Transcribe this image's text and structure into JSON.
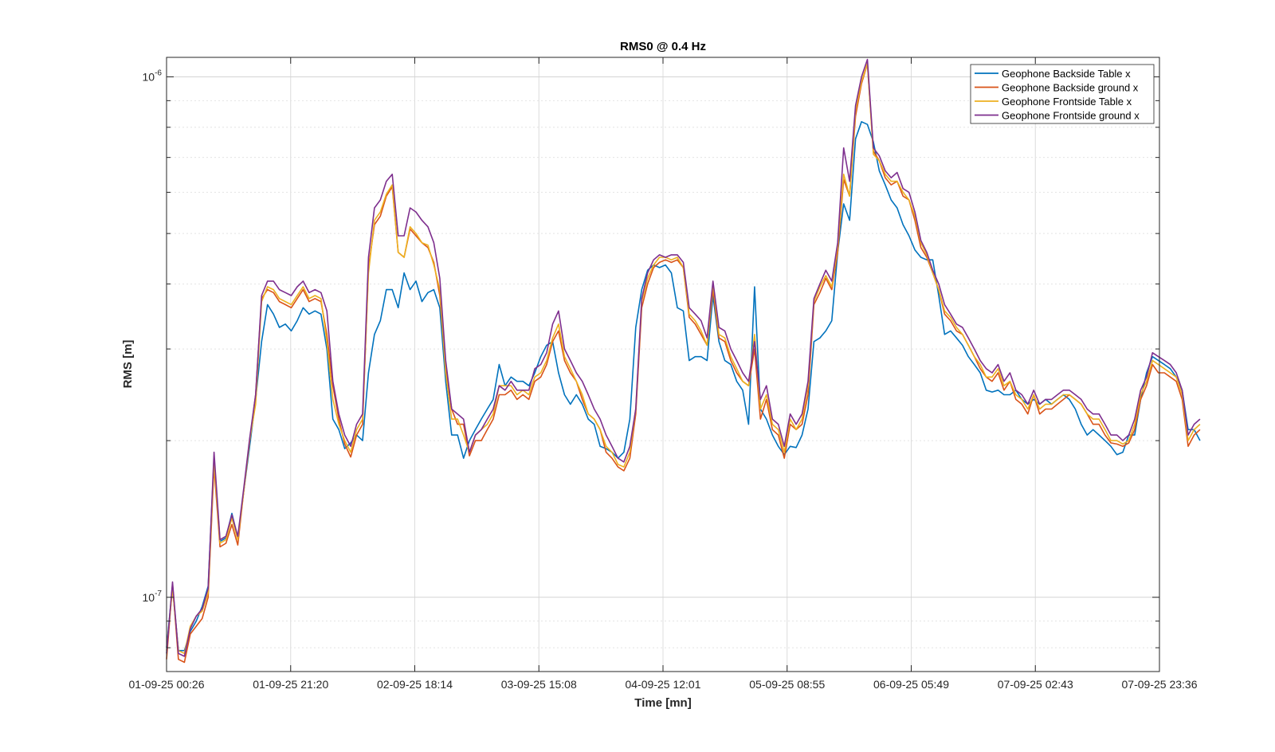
{
  "chart_data": {
    "type": "line",
    "title": "RMS0 @ 0.4 Hz",
    "xlabel": "Time [mn]",
    "ylabel": "RMS [m]",
    "yscale": "log",
    "ylim": [
      7.2e-08,
      1.09e-06
    ],
    "grid": true,
    "legend_position": "top-right",
    "x_tick_labels": [
      "01-09-25 00:26",
      "01-09-25 21:20",
      "02-09-25 18:14",
      "03-09-25 15:08",
      "04-09-25 12:01",
      "05-09-25 08:55",
      "06-09-25 05:49",
      "07-09-25 02:43",
      "07-09-25 23:36"
    ],
    "y_ticks": [
      {
        "value": 1e-07,
        "base": "10",
        "exp": "-7"
      },
      {
        "value": 1e-06,
        "base": "10",
        "exp": "-6"
      }
    ],
    "x_step_hours": 1,
    "x_start": "01-09-25 00:26",
    "series": [
      {
        "name": "Geophone Backside Table x",
        "color": "#0072BD",
        "values": [
          8e-08,
          1.05e-07,
          7.9e-08,
          7.9e-08,
          8.6e-08,
          9e-08,
          9.6e-08,
          1.05e-07,
          1.85e-07,
          1.28e-07,
          1.3e-07,
          1.45e-07,
          1.3e-07,
          1.6e-07,
          1.95e-07,
          2.4e-07,
          3.1e-07,
          3.65e-07,
          3.5e-07,
          3.3e-07,
          3.35e-07,
          3.25e-07,
          3.4e-07,
          3.6e-07,
          3.5e-07,
          3.55e-07,
          3.5e-07,
          3e-07,
          2.2e-07,
          2.1e-07,
          1.93e-07,
          1.98e-07,
          2.05e-07,
          2e-07,
          2.7e-07,
          3.2e-07,
          3.4e-07,
          3.9e-07,
          3.9e-07,
          3.6e-07,
          4.2e-07,
          3.9e-07,
          4.05e-07,
          3.7e-07,
          3.85e-07,
          3.9e-07,
          3.6e-07,
          2.6e-07,
          2.05e-07,
          2.05e-07,
          1.85e-07,
          2e-07,
          2.1e-07,
          2.2e-07,
          2.3e-07,
          2.4e-07,
          2.8e-07,
          2.55e-07,
          2.65e-07,
          2.6e-07,
          2.6e-07,
          2.55e-07,
          2.7e-07,
          2.9e-07,
          3.05e-07,
          3.1e-07,
          2.7e-07,
          2.45e-07,
          2.35e-07,
          2.45e-07,
          2.35e-07,
          2.2e-07,
          2.15e-07,
          1.95e-07,
          1.93e-07,
          1.9e-07,
          1.85e-07,
          1.9e-07,
          2.2e-07,
          3.3e-07,
          3.9e-07,
          4.25e-07,
          4.35e-07,
          4.3e-07,
          4.35e-07,
          4.2e-07,
          3.6e-07,
          3.55e-07,
          2.85e-07,
          2.9e-07,
          2.9e-07,
          2.85e-07,
          3.8e-07,
          3.1e-07,
          2.85e-07,
          2.8e-07,
          2.6e-07,
          2.5e-07,
          2.15e-07,
          3.95e-07,
          2.3e-07,
          2.2e-07,
          2.05e-07,
          1.95e-07,
          1.88e-07,
          1.95e-07,
          1.94e-07,
          2.05e-07,
          2.3e-07,
          3.1e-07,
          3.15e-07,
          3.25e-07,
          3.4e-07,
          4.6e-07,
          5.7e-07,
          5.3e-07,
          7.6e-07,
          8.2e-07,
          8.1e-07,
          7.5e-07,
          6.6e-07,
          6.2e-07,
          5.8e-07,
          5.6e-07,
          5.2e-07,
          4.95e-07,
          4.65e-07,
          4.5e-07,
          4.45e-07,
          4.45e-07,
          3.8e-07,
          3.2e-07,
          3.25e-07,
          3.15e-07,
          3.05e-07,
          2.9e-07,
          2.8e-07,
          2.7e-07,
          2.5e-07,
          2.48e-07,
          2.5e-07,
          2.45e-07,
          2.45e-07,
          2.5e-07,
          2.4e-07,
          2.35e-07,
          2.4e-07,
          2.35e-07,
          2.4e-07,
          2.35e-07,
          2.4e-07,
          2.45e-07,
          2.4e-07,
          2.3e-07,
          2.15e-07,
          2.05e-07,
          2.1e-07,
          2.05e-07,
          2e-07,
          1.95e-07,
          1.88e-07,
          1.9e-07,
          2.05e-07,
          2.05e-07,
          2.4e-07,
          2.7e-07,
          2.9e-07,
          2.85e-07,
          2.8e-07,
          2.75e-07,
          2.65e-07,
          2.5e-07,
          2.1e-07,
          2.1e-07,
          2e-07
        ]
      },
      {
        "name": "Geophone Backside ground x",
        "color": "#D95319",
        "values": [
          7.6e-08,
          1.06e-07,
          7.6e-08,
          7.5e-08,
          8.5e-08,
          8.8e-08,
          9.1e-08,
          1e-07,
          1.78e-07,
          1.25e-07,
          1.27e-07,
          1.38e-07,
          1.26e-07,
          1.6e-07,
          2e-07,
          2.45e-07,
          3.75e-07,
          3.9e-07,
          3.85e-07,
          3.7e-07,
          3.65e-07,
          3.6e-07,
          3.75e-07,
          3.9e-07,
          3.7e-07,
          3.75e-07,
          3.7e-07,
          3.2e-07,
          2.55e-07,
          2.2e-07,
          1.97e-07,
          1.86e-07,
          2.05e-07,
          2.15e-07,
          4.3e-07,
          5.2e-07,
          5.4e-07,
          5.9e-07,
          6.15e-07,
          4.6e-07,
          4.5e-07,
          5.1e-07,
          4.95e-07,
          4.8e-07,
          4.7e-07,
          4.4e-07,
          3.8e-07,
          2.75e-07,
          2.3e-07,
          2.15e-07,
          2.15e-07,
          1.87e-07,
          2e-07,
          2e-07,
          2.1e-07,
          2.2e-07,
          2.45e-07,
          2.45e-07,
          2.5e-07,
          2.4e-07,
          2.45e-07,
          2.4e-07,
          2.6e-07,
          2.65e-07,
          2.8e-07,
          3.1e-07,
          3.25e-07,
          2.85e-07,
          2.7e-07,
          2.6e-07,
          2.4e-07,
          2.25e-07,
          2.2e-07,
          2.1e-07,
          1.9e-07,
          1.85e-07,
          1.78e-07,
          1.75e-07,
          1.85e-07,
          2.25e-07,
          3.6e-07,
          4e-07,
          4.3e-07,
          4.4e-07,
          4.45e-07,
          4.4e-07,
          4.45e-07,
          4.3e-07,
          3.45e-07,
          3.35e-07,
          3.2e-07,
          3.05e-07,
          3.9e-07,
          3.15e-07,
          3.1e-07,
          2.85e-07,
          2.7e-07,
          2.6e-07,
          2.55e-07,
          3e-07,
          2.2e-07,
          2.4e-07,
          2.1e-07,
          2.05e-07,
          1.85e-07,
          2.15e-07,
          2.1e-07,
          2.15e-07,
          2.45e-07,
          3.65e-07,
          3.85e-07,
          4.1e-07,
          3.9e-07,
          4.6e-07,
          6.35e-07,
          5.9e-07,
          8.4e-07,
          9.7e-07,
          1.06e-06,
          7.2e-07,
          6.9e-07,
          6.4e-07,
          6.2e-07,
          6.3e-07,
          5.9e-07,
          5.8e-07,
          5.3e-07,
          4.7e-07,
          4.5e-07,
          4.2e-07,
          3.9e-07,
          3.5e-07,
          3.4e-07,
          3.25e-07,
          3.2e-07,
          3.05e-07,
          2.9e-07,
          2.75e-07,
          2.65e-07,
          2.6e-07,
          2.7e-07,
          2.5e-07,
          2.6e-07,
          2.4e-07,
          2.35e-07,
          2.25e-07,
          2.45e-07,
          2.25e-07,
          2.3e-07,
          2.3e-07,
          2.35e-07,
          2.4e-07,
          2.45e-07,
          2.4e-07,
          2.35e-07,
          2.25e-07,
          2.15e-07,
          2.15e-07,
          2.05e-07,
          1.98e-07,
          1.97e-07,
          1.95e-07,
          1.98e-07,
          2.1e-07,
          2.4e-07,
          2.55e-07,
          2.8e-07,
          2.7e-07,
          2.7e-07,
          2.65e-07,
          2.6e-07,
          2.4e-07,
          1.95e-07,
          2.05e-07,
          2.1e-07
        ]
      },
      {
        "name": "Geophone Frontside Table x",
        "color": "#EDB120",
        "values": [
          7.9e-08,
          1.04e-07,
          7.9e-08,
          7.8e-08,
          8.8e-08,
          9.2e-08,
          9.4e-08,
          1.02e-07,
          1.82e-07,
          1.27e-07,
          1.29e-07,
          1.42e-07,
          1.29e-07,
          1.6e-07,
          2e-07,
          2.35e-07,
          3.7e-07,
          3.95e-07,
          3.9e-07,
          3.75e-07,
          3.7e-07,
          3.65e-07,
          3.8e-07,
          3.95e-07,
          3.75e-07,
          3.8e-07,
          3.75e-07,
          3.1e-07,
          2.4e-07,
          2.15e-07,
          2e-07,
          1.9e-07,
          2.1e-07,
          2.2e-07,
          4.2e-07,
          5.3e-07,
          5.5e-07,
          5.95e-07,
          6.2e-07,
          4.6e-07,
          4.5e-07,
          5.15e-07,
          5e-07,
          4.8e-07,
          4.75e-07,
          4.35e-07,
          3.9e-07,
          2.7e-07,
          2.2e-07,
          2.2e-07,
          2.05e-07,
          1.9e-07,
          2.05e-07,
          2.1e-07,
          2.15e-07,
          2.25e-07,
          2.55e-07,
          2.55e-07,
          2.55e-07,
          2.45e-07,
          2.5e-07,
          2.45e-07,
          2.65e-07,
          2.7e-07,
          2.85e-07,
          3.15e-07,
          3.35e-07,
          2.9e-07,
          2.75e-07,
          2.6e-07,
          2.45e-07,
          2.25e-07,
          2.2e-07,
          2.1e-07,
          1.95e-07,
          1.9e-07,
          1.8e-07,
          1.78e-07,
          1.9e-07,
          2.3e-07,
          3.7e-07,
          4.1e-07,
          4.35e-07,
          4.5e-07,
          4.5e-07,
          4.45e-07,
          4.5e-07,
          4.3e-07,
          3.5e-07,
          3.4e-07,
          3.25e-07,
          3.05e-07,
          4e-07,
          3.2e-07,
          3.15e-07,
          2.9e-07,
          2.75e-07,
          2.6e-07,
          2.55e-07,
          3.2e-07,
          2.3e-07,
          2.45e-07,
          2.15e-07,
          2.1e-07,
          1.9e-07,
          2.2e-07,
          2.1e-07,
          2.2e-07,
          2.55e-07,
          3.7e-07,
          3.95e-07,
          4.15e-07,
          3.95e-07,
          4.7e-07,
          6.5e-07,
          5.9e-07,
          8.6e-07,
          9.8e-07,
          1.06e-06,
          7.1e-07,
          6.9e-07,
          6.5e-07,
          6.3e-07,
          6.3e-07,
          6e-07,
          5.8e-07,
          5.4e-07,
          4.8e-07,
          4.55e-07,
          4.2e-07,
          3.9e-07,
          3.55e-07,
          3.45e-07,
          3.3e-07,
          3.2e-07,
          3.05e-07,
          2.9e-07,
          2.8e-07,
          2.65e-07,
          2.65e-07,
          2.75e-07,
          2.55e-07,
          2.6e-07,
          2.45e-07,
          2.4e-07,
          2.3e-07,
          2.45e-07,
          2.3e-07,
          2.35e-07,
          2.35e-07,
          2.4e-07,
          2.45e-07,
          2.45e-07,
          2.4e-07,
          2.35e-07,
          2.25e-07,
          2.2e-07,
          2.2e-07,
          2.1e-07,
          2e-07,
          2e-07,
          1.97e-07,
          2e-07,
          2.15e-07,
          2.45e-07,
          2.6e-07,
          2.85e-07,
          2.8e-07,
          2.75e-07,
          2.7e-07,
          2.65e-07,
          2.45e-07,
          2e-07,
          2.1e-07,
          2.15e-07
        ]
      },
      {
        "name": "Geophone Frontside ground x",
        "color": "#7E2F8E",
        "values": [
          7.8e-08,
          1.07e-07,
          7.8e-08,
          7.7e-08,
          8.7e-08,
          9.2e-08,
          9.5e-08,
          1.04e-07,
          1.9e-07,
          1.29e-07,
          1.31e-07,
          1.44e-07,
          1.31e-07,
          1.62e-07,
          2.02e-07,
          2.45e-07,
          3.8e-07,
          4.05e-07,
          4.05e-07,
          3.9e-07,
          3.85e-07,
          3.8e-07,
          3.95e-07,
          4.05e-07,
          3.85e-07,
          3.9e-07,
          3.85e-07,
          3.55e-07,
          2.6e-07,
          2.25e-07,
          2.05e-07,
          1.95e-07,
          2.15e-07,
          2.25e-07,
          4.5e-07,
          5.6e-07,
          5.8e-07,
          6.3e-07,
          6.5e-07,
          4.95e-07,
          4.95e-07,
          5.6e-07,
          5.5e-07,
          5.3e-07,
          5.15e-07,
          4.8e-07,
          4.1e-07,
          2.85e-07,
          2.3e-07,
          2.25e-07,
          2.2e-07,
          1.9e-07,
          2.05e-07,
          2.1e-07,
          2.2e-07,
          2.3e-07,
          2.55e-07,
          2.5e-07,
          2.6e-07,
          2.5e-07,
          2.5e-07,
          2.5e-07,
          2.75e-07,
          2.8e-07,
          2.95e-07,
          3.35e-07,
          3.55e-07,
          3e-07,
          2.85e-07,
          2.7e-07,
          2.6e-07,
          2.45e-07,
          2.3e-07,
          2.2e-07,
          2.05e-07,
          1.95e-07,
          1.85e-07,
          1.82e-07,
          1.95e-07,
          2.3e-07,
          3.75e-07,
          4.2e-07,
          4.45e-07,
          4.55e-07,
          4.5e-07,
          4.55e-07,
          4.55e-07,
          4.4e-07,
          3.6e-07,
          3.5e-07,
          3.4e-07,
          3.15e-07,
          4.05e-07,
          3.3e-07,
          3.25e-07,
          3e-07,
          2.85e-07,
          2.7e-07,
          2.6e-07,
          3.1e-07,
          2.4e-07,
          2.55e-07,
          2.2e-07,
          2.15e-07,
          1.95e-07,
          2.25e-07,
          2.15e-07,
          2.25e-07,
          2.6e-07,
          3.75e-07,
          4e-07,
          4.25e-07,
          4.05e-07,
          4.8e-07,
          7.3e-07,
          6.3e-07,
          8.8e-07,
          1e-06,
          1.08e-06,
          7.3e-07,
          7.05e-07,
          6.6e-07,
          6.4e-07,
          6.55e-07,
          6.1e-07,
          6e-07,
          5.5e-07,
          4.85e-07,
          4.6e-07,
          4.25e-07,
          4e-07,
          3.65e-07,
          3.5e-07,
          3.35e-07,
          3.3e-07,
          3.15e-07,
          3e-07,
          2.85e-07,
          2.75e-07,
          2.7e-07,
          2.8e-07,
          2.6e-07,
          2.7e-07,
          2.5e-07,
          2.45e-07,
          2.35e-07,
          2.5e-07,
          2.35e-07,
          2.4e-07,
          2.4e-07,
          2.45e-07,
          2.5e-07,
          2.5e-07,
          2.45e-07,
          2.4e-07,
          2.3e-07,
          2.25e-07,
          2.25e-07,
          2.15e-07,
          2.05e-07,
          2.05e-07,
          2e-07,
          2.05e-07,
          2.2e-07,
          2.5e-07,
          2.65e-07,
          2.95e-07,
          2.9e-07,
          2.85e-07,
          2.8e-07,
          2.7e-07,
          2.5e-07,
          2.05e-07,
          2.15e-07,
          2.2e-07
        ]
      }
    ]
  }
}
